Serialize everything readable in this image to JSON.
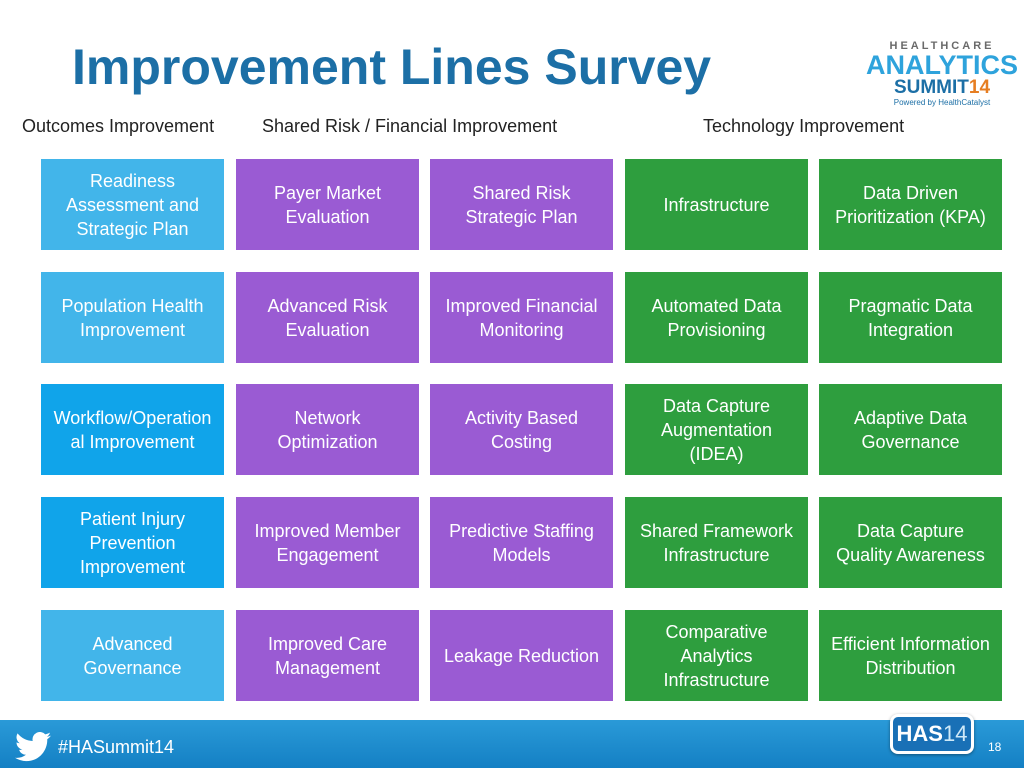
{
  "header": {
    "title": "Improvement Lines Survey",
    "logo": {
      "line1": "HEALTHCARE",
      "line2": "ANALYTICS",
      "line3": "SUMMIT",
      "year": "14",
      "tagline": "Powered by HealthCatalyst"
    }
  },
  "columns": [
    "Outcomes Improvement",
    "Shared Risk / Financial Improvement",
    "Technology Improvement"
  ],
  "grid": {
    "rows": [
      [
        "Readiness Assessment and Strategic Plan",
        "Payer Market Evaluation",
        "Shared Risk Strategic Plan",
        "Infrastructure",
        "Data Driven Prioritization (KPA)"
      ],
      [
        "Population Health Improvement",
        "Advanced Risk Evaluation",
        "Improved Financial Monitoring",
        "Automated Data Provisioning",
        "Pragmatic Data Integration"
      ],
      [
        "Workflow/Operational Improvement",
        "Network Optimization",
        "Activity Based Costing",
        "Data Capture Augmentation (IDEA)",
        "Adaptive Data Governance"
      ],
      [
        "Patient Injury Prevention Improvement",
        "Improved Member Engagement",
        "Predictive Staffing Models",
        "Shared Framework Infrastructure",
        "Data Capture Quality Awareness"
      ],
      [
        "Advanced Governance",
        "Improved Care Management",
        "Leakage Reduction",
        "Comparative Analytics Infrastructure",
        "Efficient Information Distribution"
      ]
    ]
  },
  "footer": {
    "hashtag": "#HASummit14",
    "badge": "HAS",
    "badge_year": "14",
    "page": "18"
  }
}
